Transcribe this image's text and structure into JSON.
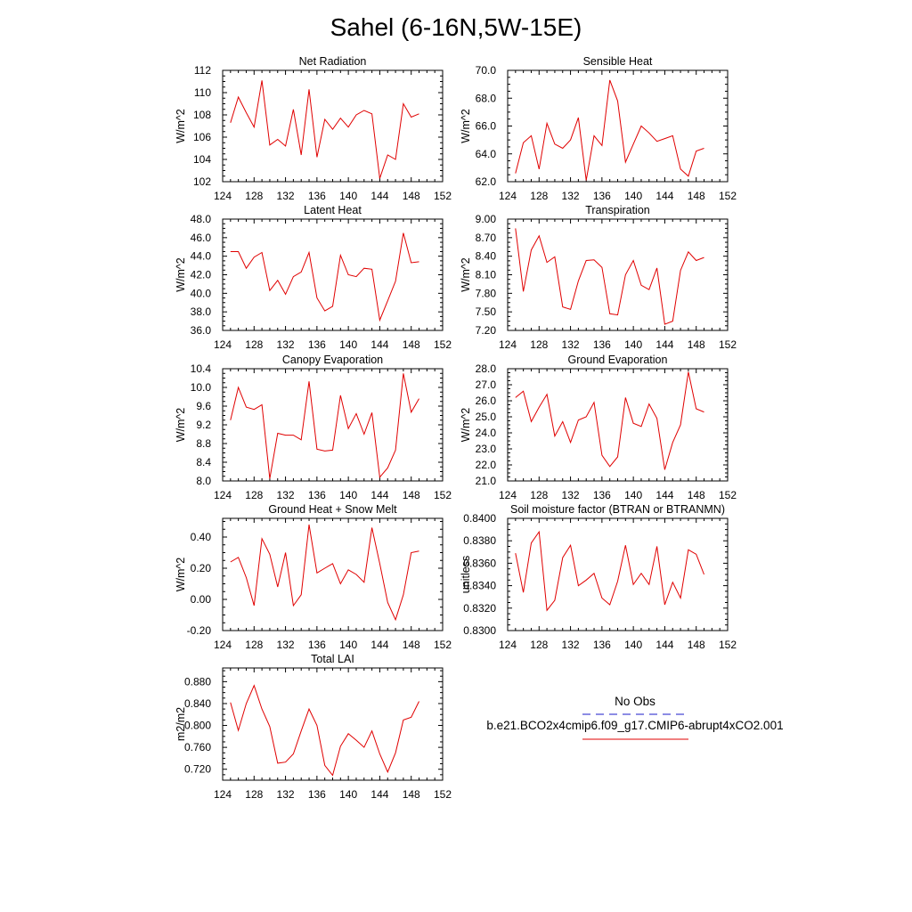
{
  "figure": {
    "title": "Sahel (6-16N,5W-15E)"
  },
  "legend": {
    "items": [
      {
        "label": "No Obs",
        "color": "#1a1ac8",
        "dash": "dashed"
      },
      {
        "label": "b.e21.BCO2x4cmip6.f09_g17.CMIP6-abrupt4xCO2.001",
        "color": "#e00000",
        "dash": "solid"
      }
    ]
  },
  "chart_data": [
    {
      "type": "line",
      "title": "Net Radiation",
      "ylabel": "W/m^2",
      "xlim": [
        124,
        152
      ],
      "ylim": [
        102,
        112
      ],
      "xticks": [
        "124",
        "128",
        "132",
        "136",
        "140",
        "144",
        "148",
        "152"
      ],
      "yticks": [
        "102",
        "104",
        "106",
        "108",
        "110",
        "112"
      ],
      "series": [
        {
          "color": "#e00000",
          "x": [
            125,
            126,
            127,
            128,
            129,
            130,
            131,
            132,
            133,
            134,
            135,
            136,
            137,
            138,
            139,
            140,
            141,
            142,
            143,
            144,
            145,
            146,
            147,
            148,
            149
          ],
          "values": [
            107.3,
            109.6,
            108.2,
            106.9,
            111.1,
            105.3,
            105.8,
            105.2,
            108.5,
            104.4,
            110.3,
            104.2,
            107.6,
            106.7,
            107.7,
            106.9,
            108.0,
            108.4,
            108.1,
            102.3,
            104.4,
            104.0,
            109.0,
            107.8,
            108.1
          ]
        }
      ]
    },
    {
      "type": "line",
      "title": "Sensible Heat",
      "ylabel": "W/m^2",
      "xlim": [
        124,
        152
      ],
      "ylim": [
        62.0,
        70.0
      ],
      "xticks": [
        "124",
        "128",
        "132",
        "136",
        "140",
        "144",
        "148",
        "152"
      ],
      "yticks": [
        "62.0",
        "64.0",
        "66.0",
        "68.0",
        "70.0"
      ],
      "series": [
        {
          "color": "#e00000",
          "x": [
            125,
            126,
            127,
            128,
            129,
            130,
            131,
            132,
            133,
            134,
            135,
            136,
            137,
            138,
            139,
            140,
            141,
            142,
            143,
            144,
            145,
            146,
            147,
            148,
            149
          ],
          "values": [
            62.6,
            64.8,
            65.3,
            62.9,
            66.2,
            64.7,
            64.4,
            65.0,
            66.6,
            62.1,
            65.3,
            64.6,
            69.3,
            67.8,
            63.4,
            64.7,
            66.0,
            65.5,
            64.9,
            65.1,
            65.3,
            62.9,
            62.4,
            64.2,
            64.4
          ]
        }
      ]
    },
    {
      "type": "line",
      "title": "Latent Heat",
      "ylabel": "W/m^2",
      "xlim": [
        124,
        152
      ],
      "ylim": [
        36.0,
        48.0
      ],
      "xticks": [
        "124",
        "128",
        "132",
        "136",
        "140",
        "144",
        "148",
        "152"
      ],
      "yticks": [
        "36.0",
        "38.0",
        "40.0",
        "42.0",
        "44.0",
        "46.0",
        "48.0"
      ],
      "series": [
        {
          "color": "#e00000",
          "x": [
            125,
            126,
            127,
            128,
            129,
            130,
            131,
            132,
            133,
            134,
            135,
            136,
            137,
            138,
            139,
            140,
            141,
            142,
            143,
            144,
            145,
            146,
            147,
            148,
            149
          ],
          "values": [
            44.5,
            44.5,
            42.7,
            43.9,
            44.4,
            40.3,
            41.4,
            39.9,
            41.8,
            42.3,
            44.4,
            39.5,
            38.1,
            38.6,
            44.1,
            42.0,
            41.8,
            42.7,
            42.6,
            37.1,
            39.2,
            41.3,
            46.5,
            43.3,
            43.4
          ]
        }
      ]
    },
    {
      "type": "line",
      "title": "Transpiration",
      "ylabel": "W/m^2",
      "xlim": [
        124,
        152
      ],
      "ylim": [
        7.2,
        9.0
      ],
      "xticks": [
        "124",
        "128",
        "132",
        "136",
        "140",
        "144",
        "148",
        "152"
      ],
      "yticks": [
        "7.20",
        "7.50",
        "7.80",
        "8.10",
        "8.40",
        "8.70",
        "9.00"
      ],
      "series": [
        {
          "color": "#e00000",
          "x": [
            125,
            126,
            127,
            128,
            129,
            130,
            131,
            132,
            133,
            134,
            135,
            136,
            137,
            138,
            139,
            140,
            141,
            142,
            143,
            144,
            145,
            146,
            147,
            148,
            149
          ],
          "values": [
            8.85,
            7.83,
            8.5,
            8.73,
            8.3,
            8.39,
            7.58,
            7.54,
            8.0,
            8.33,
            8.34,
            8.22,
            7.47,
            7.45,
            8.1,
            8.33,
            7.93,
            7.86,
            8.21,
            7.3,
            7.35,
            8.17,
            8.47,
            8.33,
            8.38
          ]
        }
      ]
    },
    {
      "type": "line",
      "title": "Canopy Evaporation",
      "ylabel": "W/m^2",
      "xlim": [
        124,
        152
      ],
      "ylim": [
        8.0,
        10.4
      ],
      "xticks": [
        "124",
        "128",
        "132",
        "136",
        "140",
        "144",
        "148",
        "152"
      ],
      "yticks": [
        "8.0",
        "8.4",
        "8.8",
        "9.2",
        "9.6",
        "10.0",
        "10.4"
      ],
      "series": [
        {
          "color": "#e00000",
          "x": [
            125,
            126,
            127,
            128,
            129,
            130,
            131,
            132,
            133,
            134,
            135,
            136,
            137,
            138,
            139,
            140,
            141,
            142,
            143,
            144,
            145,
            146,
            147,
            148,
            149
          ],
          "values": [
            9.3,
            10.0,
            9.58,
            9.53,
            9.63,
            8.05,
            9.02,
            8.98,
            8.98,
            8.88,
            10.13,
            8.68,
            8.64,
            8.66,
            9.83,
            9.12,
            9.44,
            9.0,
            9.46,
            8.08,
            8.28,
            8.66,
            10.3,
            9.47,
            9.76
          ]
        }
      ]
    },
    {
      "type": "line",
      "title": "Ground Evaporation",
      "ylabel": "W/m^2",
      "xlim": [
        124,
        152
      ],
      "ylim": [
        21.0,
        28.0
      ],
      "xticks": [
        "124",
        "128",
        "132",
        "136",
        "140",
        "144",
        "148",
        "152"
      ],
      "yticks": [
        "21.0",
        "22.0",
        "23.0",
        "24.0",
        "25.0",
        "26.0",
        "27.0",
        "28.0"
      ],
      "series": [
        {
          "color": "#e00000",
          "x": [
            125,
            126,
            127,
            128,
            129,
            130,
            131,
            132,
            133,
            134,
            135,
            136,
            137,
            138,
            139,
            140,
            141,
            142,
            143,
            144,
            145,
            146,
            147,
            148,
            149
          ],
          "values": [
            26.2,
            26.6,
            24.7,
            25.6,
            26.4,
            23.8,
            24.7,
            23.4,
            24.8,
            25.0,
            25.9,
            22.6,
            21.9,
            22.5,
            26.2,
            24.6,
            24.4,
            25.8,
            24.9,
            21.7,
            23.4,
            24.5,
            27.8,
            25.5,
            25.3
          ]
        }
      ]
    },
    {
      "type": "line",
      "title": "Ground Heat + Snow Melt",
      "ylabel": "W/m^2",
      "xlim": [
        124,
        152
      ],
      "ylim": [
        -0.2,
        0.52
      ],
      "xticks": [
        "124",
        "128",
        "132",
        "136",
        "140",
        "144",
        "148",
        "152"
      ],
      "yticks": [
        "-0.20",
        "0.00",
        "0.20",
        "0.40"
      ],
      "yticks_values": [
        -0.2,
        0.0,
        0.2,
        0.4
      ],
      "series": [
        {
          "color": "#e00000",
          "x": [
            125,
            126,
            127,
            128,
            129,
            130,
            131,
            132,
            133,
            134,
            135,
            136,
            137,
            138,
            139,
            140,
            141,
            142,
            143,
            144,
            145,
            146,
            147,
            148,
            149
          ],
          "values": [
            0.24,
            0.27,
            0.14,
            -0.04,
            0.39,
            0.29,
            0.08,
            0.3,
            -0.04,
            0.03,
            0.48,
            0.17,
            0.2,
            0.23,
            0.1,
            0.19,
            0.16,
            0.11,
            0.46,
            0.23,
            -0.02,
            -0.13,
            0.03,
            0.3,
            0.31
          ]
        }
      ]
    },
    {
      "type": "line",
      "title": "Soil moisture factor (BTRAN or BTRANMN)",
      "ylabel": "unitless",
      "xlim": [
        124,
        152
      ],
      "ylim": [
        0.83,
        0.84
      ],
      "xticks": [
        "124",
        "128",
        "132",
        "136",
        "140",
        "144",
        "148",
        "152"
      ],
      "yticks": [
        "0.8300",
        "0.8320",
        "0.8340",
        "0.8360",
        "0.8380",
        "0.8400"
      ],
      "series": [
        {
          "color": "#e00000",
          "x": [
            125,
            126,
            127,
            128,
            129,
            130,
            131,
            132,
            133,
            134,
            135,
            136,
            137,
            138,
            139,
            140,
            141,
            142,
            143,
            144,
            145,
            146,
            147,
            148,
            149
          ],
          "values": [
            0.8369,
            0.8334,
            0.8378,
            0.8388,
            0.8318,
            0.8327,
            0.8365,
            0.8376,
            0.834,
            0.8345,
            0.8351,
            0.8329,
            0.8323,
            0.8344,
            0.8376,
            0.8341,
            0.8351,
            0.8341,
            0.8375,
            0.8323,
            0.8343,
            0.8329,
            0.8372,
            0.8368,
            0.835
          ]
        }
      ]
    },
    {
      "type": "line",
      "title": "Total LAI",
      "ylabel": "m2/m2",
      "xlim": [
        124,
        152
      ],
      "ylim": [
        0.7,
        0.905
      ],
      "xticks": [
        "124",
        "128",
        "132",
        "136",
        "140",
        "144",
        "148",
        "152"
      ],
      "yticks": [
        "0.720",
        "0.760",
        "0.800",
        "0.840",
        "0.880"
      ],
      "yticks_values": [
        0.72,
        0.76,
        0.8,
        0.84,
        0.88
      ],
      "series": [
        {
          "color": "#e00000",
          "x": [
            125,
            126,
            127,
            128,
            129,
            130,
            131,
            132,
            133,
            134,
            135,
            136,
            137,
            138,
            139,
            140,
            141,
            142,
            143,
            144,
            145,
            146,
            147,
            148,
            149
          ],
          "values": [
            0.842,
            0.791,
            0.84,
            0.873,
            0.83,
            0.798,
            0.731,
            0.733,
            0.748,
            0.79,
            0.83,
            0.8,
            0.727,
            0.709,
            0.762,
            0.785,
            0.773,
            0.76,
            0.79,
            0.748,
            0.715,
            0.75,
            0.81,
            0.815,
            0.844
          ]
        }
      ]
    }
  ]
}
